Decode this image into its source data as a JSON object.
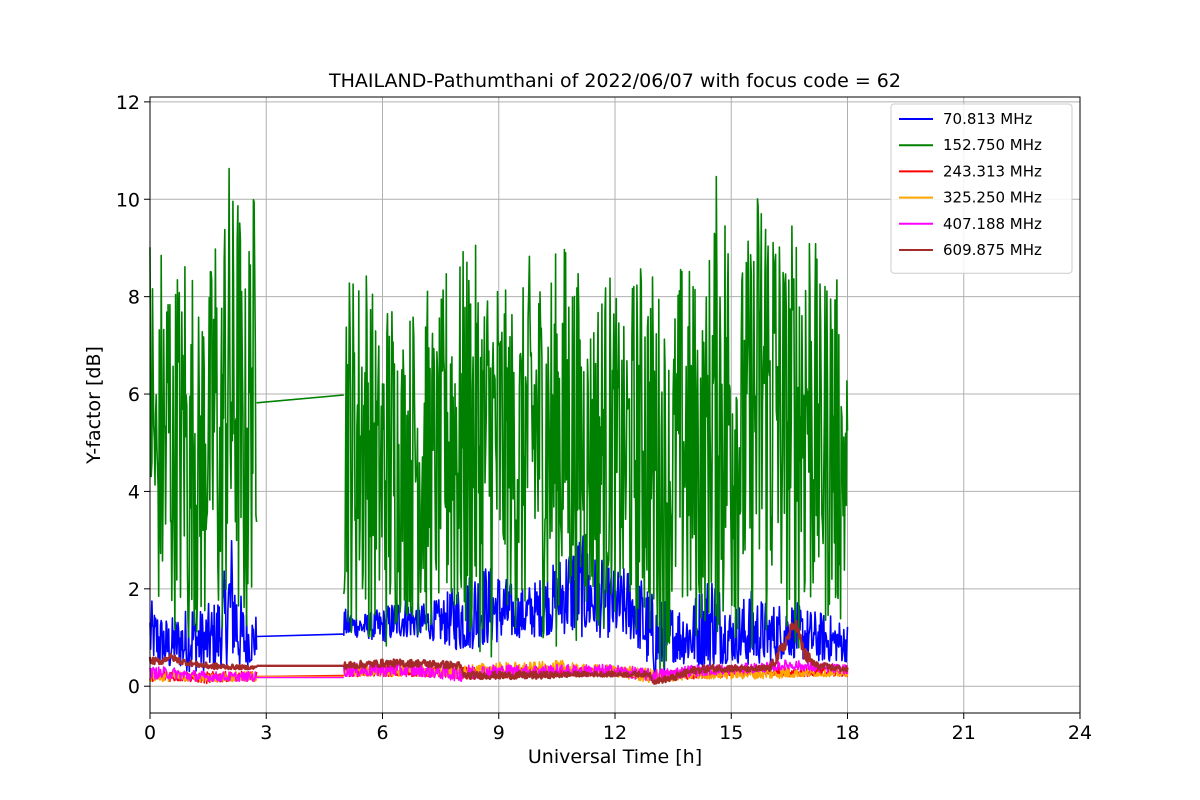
{
  "chart_data": {
    "type": "line",
    "title": "THAILAND-Pathumthani of 2022/06/07 with focus code = 62",
    "xlabel": "Universal Time [h]",
    "ylabel": "Y-factor [dB]",
    "xlim": [
      0,
      24
    ],
    "ylim": [
      -0.55,
      12.1
    ],
    "xticks": [
      0,
      3,
      6,
      9,
      12,
      15,
      18,
      21,
      24
    ],
    "yticks": [
      0,
      2,
      4,
      6,
      8,
      10,
      12
    ],
    "grid": true,
    "legend_position": "top-right",
    "series": [
      {
        "name": " 70.813 MHz",
        "color": "#0000ff",
        "segments": [
          {
            "x": [
              0,
              0.1,
              0.2,
              0.3,
              0.5,
              0.7,
              0.9,
              1.1,
              1.3,
              1.5,
              1.7,
              1.9,
              2.1,
              2.3,
              2.5,
              2.75
            ],
            "lo": [
              0.4,
              0.5,
              0.3,
              0.4,
              0.3,
              0.4,
              0.3,
              0.3,
              0.3,
              0.3,
              0.3,
              0.4,
              0.5,
              0.3,
              0.4,
              0.5
            ],
            "hi": [
              1.9,
              1.6,
              1.7,
              1.5,
              1.4,
              1.5,
              1.6,
              1.9,
              1.6,
              1.7,
              1.8,
              2.3,
              3.3,
              2.0,
              1.6,
              1.5
            ]
          },
          {
            "x": [
              2.75,
              5.0
            ],
            "lo": [
              1.02,
              1.07
            ],
            "hi": [
              1.02,
              1.07
            ]
          },
          {
            "x": [
              5.0,
              5.5,
              6.0,
              6.5,
              7.0,
              7.5,
              8.0,
              8.5,
              9.0,
              9.5,
              10.0,
              10.5,
              11.0,
              11.5,
              12.0,
              12.5,
              13.0,
              13.5,
              14.0,
              14.5,
              15.0,
              15.5,
              16.0,
              16.5,
              17.0,
              17.5,
              18.0
            ],
            "lo": [
              1.0,
              1.0,
              0.9,
              1.0,
              1.0,
              0.9,
              0.7,
              0.8,
              0.9,
              1.0,
              1.0,
              1.1,
              1.0,
              1.0,
              1.0,
              0.9,
              0.1,
              0.5,
              0.4,
              0.4,
              0.5,
              0.4,
              0.5,
              0.6,
              0.5,
              0.5,
              0.5
            ],
            "hi": [
              1.6,
              1.5,
              1.6,
              1.9,
              1.7,
              1.8,
              2.2,
              2.6,
              2.4,
              2.0,
              2.2,
              2.6,
              3.3,
              2.7,
              2.4,
              2.5,
              1.9,
              1.7,
              1.8,
              2.5,
              1.6,
              2.0,
              1.7,
              1.8,
              1.6,
              1.5,
              1.3
            ]
          }
        ]
      },
      {
        "name": "152.750 MHz",
        "color": "#008000",
        "segments": [
          {
            "x": [
              0,
              0.1,
              0.2,
              0.3,
              0.4,
              0.5,
              0.6,
              0.7,
              0.8,
              0.9,
              1.0,
              1.1,
              1.2,
              1.3,
              1.4,
              1.5,
              1.6,
              1.7,
              1.8,
              1.9,
              2.0,
              2.1,
              2.2,
              2.3,
              2.4,
              2.5,
              2.6,
              2.75
            ],
            "lo": [
              3.0,
              0.8,
              1.5,
              0.5,
              0.3,
              1.2,
              0.5,
              2.0,
              0.6,
              1.5,
              0.3,
              1.8,
              0.4,
              1.0,
              0.5,
              2.3,
              0.6,
              1.5,
              0.3,
              0.8,
              1.0,
              0.5,
              1.8,
              0.4,
              0.9,
              0.3,
              1.5,
              2.8
            ],
            "hi": [
              10.0,
              8.7,
              6.5,
              9.6,
              8.5,
              10.0,
              7.0,
              9.5,
              8.0,
              9.7,
              6.0,
              9.0,
              8.2,
              7.5,
              9.0,
              8.0,
              9.2,
              10.0,
              7.0,
              10.3,
              11.1,
              10.8,
              9.5,
              11.0,
              7.5,
              9.0,
              10.2,
              10.4
            ]
          },
          {
            "x": [
              2.75,
              5.0
            ],
            "lo": [
              5.82,
              5.98
            ],
            "hi": [
              5.82,
              5.98
            ]
          },
          {
            "x": [
              5.0,
              5.3,
              5.6,
              5.9,
              6.2,
              6.5,
              6.8,
              7.1,
              7.4,
              7.7,
              8.0,
              8.3,
              8.6,
              8.9,
              9.2,
              9.5,
              9.8,
              10.1,
              10.4,
              10.7,
              11.0,
              11.3,
              11.6,
              11.9,
              12.2,
              12.5,
              12.8,
              13.1,
              13.4,
              13.7,
              14.0,
              14.3,
              14.6,
              14.9,
              15.2,
              15.5,
              15.8,
              16.1,
              16.4,
              16.7,
              17.0,
              17.3,
              17.6,
              18.0
            ],
            "lo": [
              1.2,
              0.9,
              1.0,
              0.8,
              0.3,
              1.5,
              1.1,
              0.6,
              1.3,
              0.9,
              0.5,
              0.4,
              0.8,
              0.2,
              1.5,
              0.9,
              1.2,
              1.0,
              0.6,
              1.1,
              0.9,
              1.3,
              0.8,
              1.5,
              1.2,
              0.9,
              1.0,
              0.1,
              0.6,
              0.9,
              0.4,
              1.2,
              0.8,
              0.5,
              1.0,
              0.6,
              0.2,
              0.9,
              1.1,
              0.5,
              0.8,
              1.2,
              0.9,
              1.3
            ],
            "hi": [
              9.2,
              8.5,
              9.1,
              7.3,
              8.5,
              7.4,
              8.0,
              8.5,
              7.2,
              9.2,
              8.9,
              9.3,
              8.6,
              9.0,
              8.1,
              7.8,
              8.9,
              8.8,
              8.9,
              9.3,
              8.8,
              7.6,
              8.5,
              8.6,
              7.3,
              8.6,
              9.0,
              8.4,
              7.2,
              8.8,
              8.7,
              7.9,
              10.6,
              10.4,
              8.6,
              9.5,
              11.3,
              10.5,
              9.0,
              10.2,
              10.6,
              8.2,
              9.2,
              6.7
            ]
          }
        ]
      },
      {
        "name": "243.313 MHz",
        "color": "#ff0000",
        "segments": [
          {
            "x": [
              0,
              0.5,
              1.0,
              1.5,
              2.0,
              2.5,
              2.75
            ],
            "lo": [
              0.1,
              0.1,
              0.1,
              0.05,
              0.1,
              0.1,
              0.1
            ],
            "hi": [
              0.3,
              0.35,
              0.3,
              0.3,
              0.3,
              0.3,
              0.3
            ]
          },
          {
            "x": [
              2.75,
              5.0
            ],
            "lo": [
              0.2,
              0.22
            ],
            "hi": [
              0.2,
              0.22
            ]
          },
          {
            "x": [
              5.0,
              6.0,
              7.0,
              8.0,
              9.0,
              10.0,
              11.0,
              12.0,
              13.0,
              14.0,
              15.0,
              16.0,
              17.0,
              18.0
            ],
            "lo": [
              0.2,
              0.2,
              0.2,
              0.15,
              0.15,
              0.2,
              0.2,
              0.2,
              0.1,
              0.15,
              0.2,
              0.2,
              0.2,
              0.2
            ],
            "hi": [
              0.4,
              0.4,
              0.4,
              0.4,
              0.35,
              0.4,
              0.4,
              0.4,
              0.3,
              0.35,
              0.4,
              0.4,
              0.4,
              0.35
            ]
          }
        ]
      },
      {
        "name": "325.250 MHz",
        "color": "#ffa500",
        "segments": [
          {
            "x": [
              0,
              0.5,
              1.0,
              1.5,
              2.0,
              2.5,
              2.75
            ],
            "lo": [
              0.1,
              0.1,
              0.1,
              0.1,
              0.1,
              0.1,
              0.1
            ],
            "hi": [
              0.3,
              0.3,
              0.3,
              0.25,
              0.3,
              0.3,
              0.3
            ]
          },
          {
            "x": [
              2.75,
              5.0
            ],
            "lo": [
              0.2,
              0.2
            ],
            "hi": [
              0.2,
              0.2
            ]
          },
          {
            "x": [
              5.0,
              6.0,
              7.0,
              8.0,
              9.0,
              10.0,
              10.9,
              11.0,
              12.0,
              13.0,
              14.0,
              15.0,
              16.0,
              17.0,
              18.0
            ],
            "lo": [
              0.2,
              0.2,
              0.2,
              0.15,
              0.2,
              0.2,
              0.2,
              0.2,
              0.2,
              0.05,
              0.15,
              0.15,
              0.15,
              0.2,
              0.2
            ],
            "hi": [
              0.45,
              0.45,
              0.5,
              0.45,
              0.5,
              0.5,
              0.55,
              0.45,
              0.45,
              0.35,
              0.35,
              0.4,
              0.4,
              0.35,
              0.3
            ]
          }
        ]
      },
      {
        "name": "407.188 MHz",
        "color": "#ff00ff",
        "segments": [
          {
            "x": [
              0,
              0.5,
              1.0,
              1.5,
              2.0,
              2.5,
              2.75
            ],
            "lo": [
              0.15,
              0.15,
              0.1,
              0.1,
              0.1,
              0.1,
              0.1
            ],
            "hi": [
              0.4,
              0.4,
              0.35,
              0.3,
              0.3,
              0.3,
              0.3
            ]
          },
          {
            "x": [
              2.75,
              5.0
            ],
            "lo": [
              0.18,
              0.18
            ],
            "hi": [
              0.18,
              0.18
            ]
          },
          {
            "x": [
              5.0,
              6.0,
              7.0,
              8.0,
              9.0,
              10.0,
              11.0,
              12.0,
              13.0,
              14.0,
              15.0,
              16.0,
              16.5,
              17.0,
              18.0
            ],
            "lo": [
              0.2,
              0.2,
              0.2,
              0.1,
              0.2,
              0.2,
              0.2,
              0.2,
              0.1,
              0.2,
              0.25,
              0.3,
              0.35,
              0.3,
              0.25
            ],
            "hi": [
              0.45,
              0.5,
              0.45,
              0.45,
              0.45,
              0.45,
              0.45,
              0.45,
              0.35,
              0.45,
              0.45,
              0.5,
              0.55,
              0.5,
              0.45
            ]
          }
        ]
      },
      {
        "name": "609.875 MHz",
        "color": "#a52a2a",
        "segments": [
          {
            "x": [
              0,
              0.3,
              0.5,
              0.8,
              1.2,
              1.6,
              2.0,
              2.4,
              2.75
            ],
            "lo": [
              0.45,
              0.45,
              0.55,
              0.45,
              0.4,
              0.35,
              0.35,
              0.35,
              0.35
            ],
            "hi": [
              0.6,
              0.58,
              0.68,
              0.58,
              0.5,
              0.48,
              0.45,
              0.43,
              0.42
            ]
          },
          {
            "x": [
              2.75,
              5.0
            ],
            "lo": [
              0.42,
              0.42
            ],
            "hi": [
              0.42,
              0.42
            ]
          },
          {
            "x": [
              5.0,
              6.0,
              7.0,
              8.0,
              8.1,
              9.0,
              10.0,
              11.0,
              12.0,
              12.9,
              13.0,
              13.5,
              14.0,
              14.5,
              15.0,
              15.5,
              16.0,
              16.3,
              16.65,
              16.9,
              17.2,
              18.0
            ],
            "lo": [
              0.35,
              0.4,
              0.4,
              0.35,
              0.15,
              0.15,
              0.15,
              0.2,
              0.2,
              0.2,
              0.05,
              0.1,
              0.25,
              0.3,
              0.3,
              0.3,
              0.3,
              0.6,
              1.2,
              0.5,
              0.35,
              0.3
            ],
            "hi": [
              0.5,
              0.55,
              0.55,
              0.5,
              0.3,
              0.3,
              0.3,
              0.3,
              0.3,
              0.3,
              0.15,
              0.25,
              0.4,
              0.45,
              0.45,
              0.4,
              0.45,
              0.9,
              1.45,
              0.8,
              0.5,
              0.4
            ]
          }
        ]
      }
    ]
  }
}
